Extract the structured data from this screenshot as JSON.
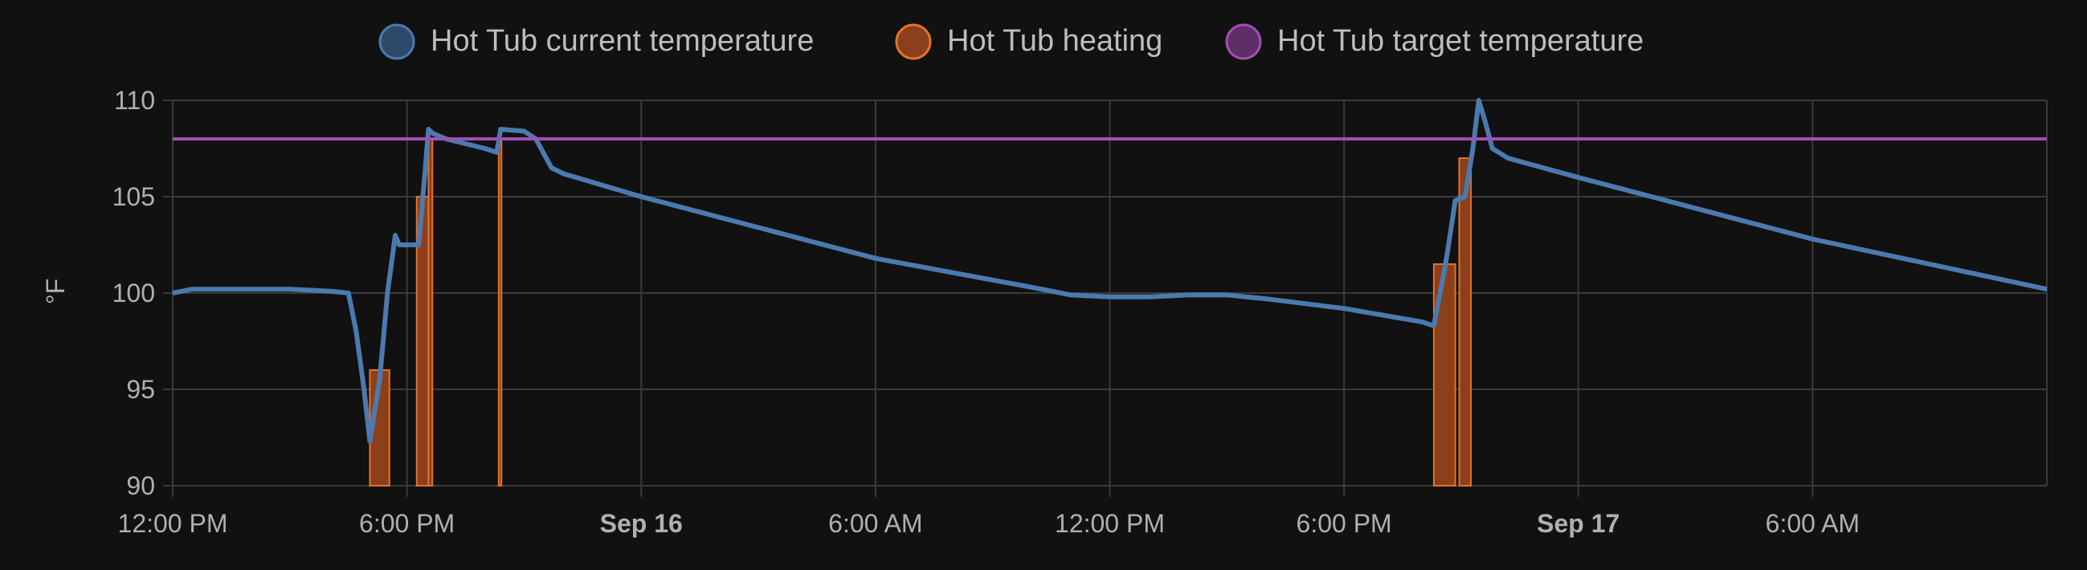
{
  "chart_data": {
    "type": "line",
    "ylabel": "°F",
    "ylim": [
      90,
      110
    ],
    "y_ticks": [
      {
        "value": 90,
        "label": "90"
      },
      {
        "value": 95,
        "label": "95"
      },
      {
        "value": 100,
        "label": "100"
      },
      {
        "value": 105,
        "label": "105"
      },
      {
        "value": 110,
        "label": "110"
      }
    ],
    "xlim_hours": [
      0,
      48
    ],
    "x_ticks": [
      {
        "hour": 0,
        "label": "12:00 PM",
        "bold": false
      },
      {
        "hour": 6,
        "label": "6:00 PM",
        "bold": false
      },
      {
        "hour": 12,
        "label": "Sep 16",
        "bold": true
      },
      {
        "hour": 18,
        "label": "6:00 AM",
        "bold": false
      },
      {
        "hour": 24,
        "label": "12:00 PM",
        "bold": false
      },
      {
        "hour": 30,
        "label": "6:00 PM",
        "bold": false
      },
      {
        "hour": 36,
        "label": "Sep 17",
        "bold": true
      },
      {
        "hour": 42,
        "label": "6:00 AM",
        "bold": false
      }
    ],
    "grid": true,
    "legend": "top-center",
    "series": [
      {
        "name": "Hot Tub current temperature",
        "color": "#4a7ab0",
        "points": [
          [
            0.0,
            100.0
          ],
          [
            0.5,
            100.2
          ],
          [
            1.0,
            100.2
          ],
          [
            2.0,
            100.2
          ],
          [
            3.0,
            100.2
          ],
          [
            4.0,
            100.1
          ],
          [
            4.5,
            100.0
          ],
          [
            4.7,
            98.0
          ],
          [
            4.9,
            95.0
          ],
          [
            5.05,
            92.3
          ],
          [
            5.3,
            95.5
          ],
          [
            5.5,
            100.0
          ],
          [
            5.7,
            103.0
          ],
          [
            5.8,
            102.5
          ],
          [
            6.3,
            102.5
          ],
          [
            6.45,
            106.0
          ],
          [
            6.55,
            108.5
          ],
          [
            6.65,
            108.3
          ],
          [
            7.0,
            108.0
          ],
          [
            8.0,
            107.5
          ],
          [
            8.3,
            107.3
          ],
          [
            8.4,
            108.5
          ],
          [
            9.0,
            108.4
          ],
          [
            9.3,
            108.0
          ],
          [
            9.7,
            106.5
          ],
          [
            10.0,
            106.2
          ],
          [
            12.0,
            105.0
          ],
          [
            18.0,
            101.8
          ],
          [
            22.0,
            100.3
          ],
          [
            23.0,
            99.9
          ],
          [
            24.0,
            99.8
          ],
          [
            25.0,
            99.8
          ],
          [
            26.0,
            99.9
          ],
          [
            27.0,
            99.9
          ],
          [
            28.0,
            99.7
          ],
          [
            30.0,
            99.2
          ],
          [
            32.0,
            98.5
          ],
          [
            32.3,
            98.3
          ],
          [
            32.6,
            101.5
          ],
          [
            32.85,
            104.8
          ],
          [
            33.1,
            105.0
          ],
          [
            33.3,
            107.5
          ],
          [
            33.45,
            110.0
          ],
          [
            33.6,
            109.0
          ],
          [
            33.8,
            107.5
          ],
          [
            34.2,
            107.0
          ],
          [
            36.0,
            106.0
          ],
          [
            42.0,
            102.8
          ],
          [
            48.0,
            100.2
          ]
        ]
      },
      {
        "name": "Hot Tub heating",
        "color": "#e0732c",
        "fill": "#8b3f1a",
        "heating_intervals": [
          [
            5.05,
            5.55,
            96.0
          ],
          [
            6.25,
            6.55,
            105.0
          ],
          [
            6.55,
            6.65,
            108.0
          ],
          [
            8.35,
            8.42,
            108.0
          ],
          [
            32.3,
            32.85,
            101.5
          ],
          [
            32.95,
            33.25,
            107.0
          ]
        ]
      },
      {
        "name": "Hot Tub target temperature",
        "color": "#a54cb3",
        "points": [
          [
            0,
            108
          ],
          [
            48,
            108
          ]
        ]
      }
    ]
  }
}
